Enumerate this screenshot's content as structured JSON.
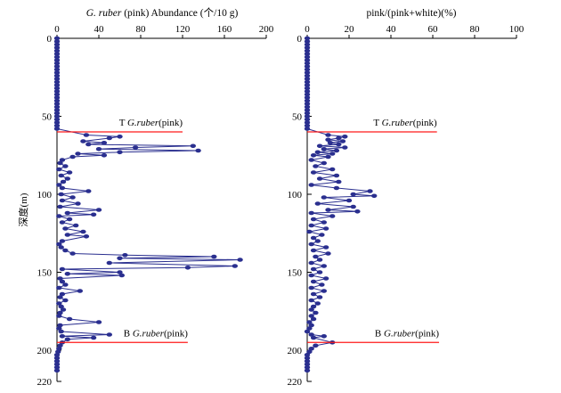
{
  "chart_data": [
    {
      "type": "line",
      "title_italic": "G. ruber",
      "title_rest": " (pink) Abundance (个/10 g)",
      "ylabel": "深度(m)",
      "xlim": [
        0,
        200
      ],
      "ylim": [
        0,
        220
      ],
      "y_inverted": true,
      "xticks": [
        "0",
        "40",
        "80",
        "120",
        "160",
        "200"
      ],
      "yticks": [
        "0",
        "50",
        "100",
        "150",
        "200",
        "220"
      ],
      "series_color": "#2a2f8f",
      "line_color": "#ff1a1a",
      "markers": [
        {
          "prefix": "T ",
          "italic": "G.ruber",
          "suffix": "(pink)",
          "depth": 60,
          "x_end": 120
        },
        {
          "prefix": "B ",
          "italic": "G.ruber",
          "suffix": "(pink)",
          "depth": 195,
          "x_end": 125
        }
      ],
      "points": [
        [
          0,
          0
        ],
        [
          0,
          2
        ],
        [
          0,
          4
        ],
        [
          0,
          6
        ],
        [
          0,
          8
        ],
        [
          0,
          10
        ],
        [
          0,
          12
        ],
        [
          0,
          14
        ],
        [
          0,
          16
        ],
        [
          0,
          18
        ],
        [
          0,
          20
        ],
        [
          0,
          22
        ],
        [
          0,
          24
        ],
        [
          0,
          26
        ],
        [
          0,
          28
        ],
        [
          0,
          30
        ],
        [
          0,
          32
        ],
        [
          0,
          34
        ],
        [
          0,
          36
        ],
        [
          0,
          38
        ],
        [
          0,
          40
        ],
        [
          0,
          42
        ],
        [
          0,
          44
        ],
        [
          0,
          46
        ],
        [
          0,
          48
        ],
        [
          0,
          50
        ],
        [
          0,
          52
        ],
        [
          0,
          54
        ],
        [
          0,
          56
        ],
        [
          0,
          58
        ],
        [
          28,
          62
        ],
        [
          60,
          63
        ],
        [
          50,
          64
        ],
        [
          25,
          66
        ],
        [
          45,
          67
        ],
        [
          30,
          68
        ],
        [
          130,
          69
        ],
        [
          75,
          70
        ],
        [
          40,
          71
        ],
        [
          135,
          72
        ],
        [
          60,
          73
        ],
        [
          20,
          74
        ],
        [
          45,
          75
        ],
        [
          15,
          76
        ],
        [
          5,
          78
        ],
        [
          3,
          80
        ],
        [
          8,
          82
        ],
        [
          2,
          84
        ],
        [
          12,
          86
        ],
        [
          4,
          88
        ],
        [
          10,
          90
        ],
        [
          6,
          92
        ],
        [
          2,
          94
        ],
        [
          5,
          96
        ],
        [
          30,
          98
        ],
        [
          4,
          100
        ],
        [
          15,
          102
        ],
        [
          5,
          104
        ],
        [
          20,
          106
        ],
        [
          3,
          108
        ],
        [
          40,
          110
        ],
        [
          10,
          112
        ],
        [
          35,
          113
        ],
        [
          2,
          114
        ],
        [
          12,
          116
        ],
        [
          5,
          118
        ],
        [
          18,
          120
        ],
        [
          8,
          122
        ],
        [
          25,
          124
        ],
        [
          10,
          126
        ],
        [
          28,
          127
        ],
        [
          5,
          130
        ],
        [
          2,
          132
        ],
        [
          4,
          134
        ],
        [
          8,
          136
        ],
        [
          15,
          138
        ],
        [
          65,
          139
        ],
        [
          150,
          140
        ],
        [
          60,
          141
        ],
        [
          175,
          142
        ],
        [
          50,
          144
        ],
        [
          170,
          146
        ],
        [
          125,
          147
        ],
        [
          5,
          148
        ],
        [
          60,
          150
        ],
        [
          10,
          151
        ],
        [
          62,
          152
        ],
        [
          3,
          154
        ],
        [
          5,
          156
        ],
        [
          8,
          158
        ],
        [
          2,
          160
        ],
        [
          22,
          162
        ],
        [
          5,
          164
        ],
        [
          3,
          166
        ],
        [
          8,
          168
        ],
        [
          2,
          170
        ],
        [
          4,
          172
        ],
        [
          6,
          174
        ],
        [
          3,
          176
        ],
        [
          2,
          178
        ],
        [
          12,
          180
        ],
        [
          40,
          182
        ],
        [
          3,
          184
        ],
        [
          2,
          186
        ],
        [
          4,
          188
        ],
        [
          50,
          190
        ],
        [
          5,
          191
        ],
        [
          35,
          192
        ],
        [
          10,
          193
        ],
        [
          5,
          195
        ],
        [
          3,
          197
        ],
        [
          2,
          199
        ],
        [
          1,
          201
        ],
        [
          0,
          203
        ],
        [
          0,
          205
        ],
        [
          0,
          207
        ],
        [
          0,
          209
        ],
        [
          0,
          211
        ],
        [
          0,
          213
        ]
      ]
    },
    {
      "type": "line",
      "title_italic": "",
      "title_rest": "pink/(pink+white)(%)",
      "ylabel": "",
      "xlim": [
        0,
        100
      ],
      "ylim": [
        0,
        220
      ],
      "y_inverted": true,
      "xticks": [
        "0",
        "20",
        "40",
        "60",
        "80",
        "100"
      ],
      "yticks": [
        "0",
        "50",
        "100",
        "150",
        "200",
        "220"
      ],
      "series_color": "#2a2f8f",
      "line_color": "#ff1a1a",
      "markers": [
        {
          "prefix": "T ",
          "italic": "G.ruber",
          "suffix": "(pink)",
          "depth": 60,
          "x_end": 62
        },
        {
          "prefix": "B ",
          "italic": "G.ruber",
          "suffix": "(pink)",
          "depth": 195,
          "x_end": 63
        }
      ],
      "points": [
        [
          0,
          0
        ],
        [
          0,
          2
        ],
        [
          0,
          4
        ],
        [
          0,
          6
        ],
        [
          0,
          8
        ],
        [
          0,
          10
        ],
        [
          0,
          12
        ],
        [
          0,
          14
        ],
        [
          0,
          16
        ],
        [
          0,
          18
        ],
        [
          0,
          20
        ],
        [
          0,
          22
        ],
        [
          0,
          24
        ],
        [
          0,
          26
        ],
        [
          0,
          28
        ],
        [
          0,
          30
        ],
        [
          0,
          32
        ],
        [
          0,
          34
        ],
        [
          0,
          36
        ],
        [
          0,
          38
        ],
        [
          0,
          40
        ],
        [
          0,
          42
        ],
        [
          0,
          44
        ],
        [
          0,
          46
        ],
        [
          0,
          48
        ],
        [
          0,
          50
        ],
        [
          0,
          52
        ],
        [
          0,
          54
        ],
        [
          0,
          56
        ],
        [
          0,
          58
        ],
        [
          10,
          62
        ],
        [
          18,
          63
        ],
        [
          15,
          64
        ],
        [
          10,
          65
        ],
        [
          17,
          66
        ],
        [
          11,
          67
        ],
        [
          15,
          68
        ],
        [
          6,
          69
        ],
        [
          18,
          70
        ],
        [
          8,
          71
        ],
        [
          14,
          72
        ],
        [
          5,
          73
        ],
        [
          12,
          74
        ],
        [
          3,
          75
        ],
        [
          10,
          76
        ],
        [
          2,
          78
        ],
        [
          8,
          80
        ],
        [
          4,
          82
        ],
        [
          12,
          84
        ],
        [
          3,
          86
        ],
        [
          14,
          88
        ],
        [
          6,
          90
        ],
        [
          15,
          92
        ],
        [
          2,
          94
        ],
        [
          14,
          96
        ],
        [
          30,
          98
        ],
        [
          22,
          100
        ],
        [
          32,
          101
        ],
        [
          8,
          102
        ],
        [
          20,
          104
        ],
        [
          5,
          106
        ],
        [
          22,
          108
        ],
        [
          10,
          110
        ],
        [
          24,
          111
        ],
        [
          2,
          112
        ],
        [
          12,
          114
        ],
        [
          3,
          116
        ],
        [
          8,
          118
        ],
        [
          2,
          120
        ],
        [
          9,
          122
        ],
        [
          1,
          124
        ],
        [
          7,
          126
        ],
        [
          3,
          128
        ],
        [
          5,
          130
        ],
        [
          2,
          132
        ],
        [
          9,
          134
        ],
        [
          3,
          136
        ],
        [
          10,
          138
        ],
        [
          4,
          140
        ],
        [
          6,
          142
        ],
        [
          2,
          144
        ],
        [
          8,
          146
        ],
        [
          3,
          148
        ],
        [
          6,
          150
        ],
        [
          2,
          152
        ],
        [
          9,
          154
        ],
        [
          3,
          156
        ],
        [
          7,
          158
        ],
        [
          2,
          160
        ],
        [
          8,
          162
        ],
        [
          3,
          164
        ],
        [
          6,
          166
        ],
        [
          2,
          168
        ],
        [
          5,
          170
        ],
        [
          3,
          172
        ],
        [
          2,
          174
        ],
        [
          4,
          176
        ],
        [
          2,
          178
        ],
        [
          3,
          180
        ],
        [
          1,
          182
        ],
        [
          2,
          184
        ],
        [
          1,
          186
        ],
        [
          0,
          188
        ],
        [
          2,
          190
        ],
        [
          8,
          191
        ],
        [
          3,
          192
        ],
        [
          12,
          195
        ],
        [
          4,
          197
        ],
        [
          2,
          199
        ],
        [
          1,
          201
        ],
        [
          0,
          203
        ],
        [
          0,
          205
        ],
        [
          0,
          207
        ],
        [
          0,
          209
        ],
        [
          0,
          211
        ],
        [
          0,
          213
        ]
      ]
    }
  ]
}
